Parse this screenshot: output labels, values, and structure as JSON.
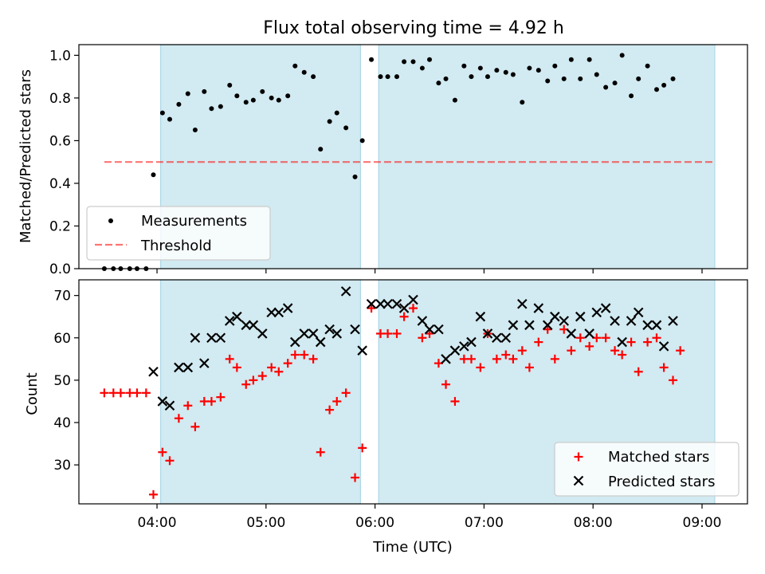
{
  "figure": {
    "title": "Flux total observing time = 4.92 h"
  },
  "colors": {
    "observing_band": "#add8e6",
    "measurements": "#000000",
    "threshold": "#ff0000",
    "matched": "#ff0000",
    "predicted": "#000000"
  },
  "chart_data": [
    {
      "type": "scatter",
      "panel": "top",
      "ylabel": "Matched/Predicted stars",
      "xlim": [
        "03:17",
        "09:25"
      ],
      "ylim": [
        0,
        1.05
      ],
      "yticks": [
        0.0,
        0.2,
        0.4,
        0.6,
        0.8,
        1.0
      ],
      "ytick_labels": [
        "0.0",
        "0.2",
        "0.4",
        "0.6",
        "0.8",
        "1.0"
      ],
      "grid": false,
      "legend": {
        "placement": "lower-left",
        "entries": [
          "Measurements",
          "Threshold"
        ]
      },
      "observing_intervals": [
        [
          "04:02",
          "05:52"
        ],
        [
          "06:02",
          "09:07"
        ]
      ],
      "threshold": {
        "name": "Threshold",
        "value": 0.5,
        "x_range": [
          "03:31",
          "09:07"
        ],
        "style": "dashed"
      },
      "series": [
        {
          "name": "Measurements",
          "marker": "dot",
          "points": [
            [
              "03:31",
              0.0
            ],
            [
              "03:36",
              0.0
            ],
            [
              "03:40",
              0.0
            ],
            [
              "03:45",
              0.0
            ],
            [
              "03:49",
              0.0
            ],
            [
              "03:54",
              0.0
            ],
            [
              "03:58",
              0.44
            ],
            [
              "04:03",
              0.73
            ],
            [
              "04:07",
              0.7
            ],
            [
              "04:12",
              0.77
            ],
            [
              "04:17",
              0.82
            ],
            [
              "04:21",
              0.65
            ],
            [
              "04:26",
              0.83
            ],
            [
              "04:30",
              0.75
            ],
            [
              "04:35",
              0.76
            ],
            [
              "04:40",
              0.86
            ],
            [
              "04:44",
              0.81
            ],
            [
              "04:49",
              0.78
            ],
            [
              "04:53",
              0.79
            ],
            [
              "04:58",
              0.83
            ],
            [
              "05:03",
              0.8
            ],
            [
              "05:07",
              0.79
            ],
            [
              "05:12",
              0.81
            ],
            [
              "05:16",
              0.95
            ],
            [
              "05:21",
              0.92
            ],
            [
              "05:26",
              0.9
            ],
            [
              "05:30",
              0.56
            ],
            [
              "05:35",
              0.69
            ],
            [
              "05:39",
              0.73
            ],
            [
              "05:44",
              0.66
            ],
            [
              "05:49",
              0.43
            ],
            [
              "05:53",
              0.6
            ],
            [
              "05:58",
              0.98
            ],
            [
              "06:03",
              0.9
            ],
            [
              "06:07",
              0.9
            ],
            [
              "06:12",
              0.9
            ],
            [
              "06:16",
              0.97
            ],
            [
              "06:21",
              0.97
            ],
            [
              "06:26",
              0.94
            ],
            [
              "06:30",
              0.98
            ],
            [
              "06:35",
              0.87
            ],
            [
              "06:39",
              0.89
            ],
            [
              "06:44",
              0.79
            ],
            [
              "06:49",
              0.95
            ],
            [
              "06:53",
              0.9
            ],
            [
              "06:58",
              0.94
            ],
            [
              "07:02",
              0.9
            ],
            [
              "07:07",
              0.93
            ],
            [
              "07:12",
              0.92
            ],
            [
              "07:16",
              0.91
            ],
            [
              "07:21",
              0.78
            ],
            [
              "07:25",
              0.94
            ],
            [
              "07:30",
              0.93
            ],
            [
              "07:35",
              0.88
            ],
            [
              "07:39",
              0.95
            ],
            [
              "07:44",
              0.89
            ],
            [
              "07:48",
              0.98
            ],
            [
              "07:53",
              0.89
            ],
            [
              "07:58",
              0.98
            ],
            [
              "08:02",
              0.91
            ],
            [
              "08:07",
              0.85
            ],
            [
              "08:12",
              0.87
            ],
            [
              "08:16",
              1.0
            ],
            [
              "08:21",
              0.81
            ],
            [
              "08:25",
              0.89
            ],
            [
              "08:30",
              0.95
            ],
            [
              "08:35",
              0.84
            ],
            [
              "08:39",
              0.86
            ],
            [
              "08:44",
              0.89
            ]
          ]
        }
      ]
    },
    {
      "type": "scatter",
      "panel": "bottom",
      "xlabel": "Time (UTC)",
      "ylabel": "Count",
      "xlim": [
        "03:17",
        "09:25"
      ],
      "ylim": [
        20.8,
        73.7
      ],
      "xticks": [
        "04:00",
        "05:00",
        "06:00",
        "07:00",
        "08:00",
        "09:00"
      ],
      "yticks": [
        30,
        40,
        50,
        60,
        70
      ],
      "grid": false,
      "legend": {
        "placement": "lower-right",
        "entries": [
          "Matched stars",
          "Predicted stars"
        ]
      },
      "observing_intervals": [
        [
          "04:02",
          "05:52"
        ],
        [
          "06:02",
          "09:07"
        ]
      ],
      "series": [
        {
          "name": "Matched stars",
          "marker": "plus",
          "points": [
            [
              "03:31",
              47
            ],
            [
              "03:36",
              47
            ],
            [
              "03:40",
              47
            ],
            [
              "03:45",
              47
            ],
            [
              "03:49",
              47
            ],
            [
              "03:54",
              47
            ],
            [
              "03:58",
              23
            ],
            [
              "04:03",
              33
            ],
            [
              "04:07",
              31
            ],
            [
              "04:12",
              41
            ],
            [
              "04:17",
              44
            ],
            [
              "04:21",
              39
            ],
            [
              "04:26",
              45
            ],
            [
              "04:30",
              45
            ],
            [
              "04:35",
              46
            ],
            [
              "04:40",
              55
            ],
            [
              "04:44",
              53
            ],
            [
              "04:49",
              49
            ],
            [
              "04:53",
              50
            ],
            [
              "04:58",
              51
            ],
            [
              "05:03",
              53
            ],
            [
              "05:07",
              52
            ],
            [
              "05:12",
              54
            ],
            [
              "05:16",
              56
            ],
            [
              "05:21",
              56
            ],
            [
              "05:26",
              55
            ],
            [
              "05:30",
              33
            ],
            [
              "05:35",
              43
            ],
            [
              "05:39",
              45
            ],
            [
              "05:44",
              47
            ],
            [
              "05:49",
              27
            ],
            [
              "05:53",
              34
            ],
            [
              "05:58",
              67
            ],
            [
              "06:03",
              61
            ],
            [
              "06:07",
              61
            ],
            [
              "06:12",
              61
            ],
            [
              "06:16",
              65
            ],
            [
              "06:21",
              67
            ],
            [
              "06:26",
              60
            ],
            [
              "06:30",
              61
            ],
            [
              "06:35",
              54
            ],
            [
              "06:39",
              49
            ],
            [
              "06:44",
              45
            ],
            [
              "06:49",
              55
            ],
            [
              "06:53",
              55
            ],
            [
              "06:58",
              53
            ],
            [
              "07:02",
              61
            ],
            [
              "07:07",
              55
            ],
            [
              "07:12",
              56
            ],
            [
              "07:16",
              55
            ],
            [
              "07:21",
              57
            ],
            [
              "07:25",
              53
            ],
            [
              "07:30",
              59
            ],
            [
              "07:35",
              62
            ],
            [
              "07:39",
              55
            ],
            [
              "07:44",
              62
            ],
            [
              "07:48",
              57
            ],
            [
              "07:53",
              60
            ],
            [
              "07:58",
              58
            ],
            [
              "08:02",
              60
            ],
            [
              "08:07",
              60
            ],
            [
              "08:12",
              57
            ],
            [
              "08:16",
              56
            ],
            [
              "08:21",
              59
            ],
            [
              "08:25",
              52
            ],
            [
              "08:30",
              59
            ],
            [
              "08:35",
              60
            ],
            [
              "08:39",
              53
            ],
            [
              "08:44",
              50
            ],
            [
              "08:48",
              57
            ]
          ]
        },
        {
          "name": "Predicted stars",
          "marker": "x",
          "points": [
            [
              "03:58",
              52
            ],
            [
              "04:03",
              45
            ],
            [
              "04:07",
              44
            ],
            [
              "04:12",
              53
            ],
            [
              "04:17",
              53
            ],
            [
              "04:21",
              60
            ],
            [
              "04:26",
              54
            ],
            [
              "04:30",
              60
            ],
            [
              "04:35",
              60
            ],
            [
              "04:40",
              64
            ],
            [
              "04:44",
              65
            ],
            [
              "04:49",
              63
            ],
            [
              "04:53",
              63
            ],
            [
              "04:58",
              61
            ],
            [
              "05:03",
              66
            ],
            [
              "05:07",
              66
            ],
            [
              "05:12",
              67
            ],
            [
              "05:16",
              59
            ],
            [
              "05:21",
              61
            ],
            [
              "05:26",
              61
            ],
            [
              "05:30",
              59
            ],
            [
              "05:35",
              62
            ],
            [
              "05:39",
              61
            ],
            [
              "05:44",
              71
            ],
            [
              "05:49",
              62
            ],
            [
              "05:53",
              57
            ],
            [
              "05:58",
              68
            ],
            [
              "06:03",
              68
            ],
            [
              "06:07",
              68
            ],
            [
              "06:12",
              68
            ],
            [
              "06:16",
              67
            ],
            [
              "06:21",
              69
            ],
            [
              "06:26",
              64
            ],
            [
              "06:30",
              62
            ],
            [
              "06:35",
              62
            ],
            [
              "06:39",
              55
            ],
            [
              "06:44",
              57
            ],
            [
              "06:49",
              58
            ],
            [
              "06:53",
              59
            ],
            [
              "06:58",
              65
            ],
            [
              "07:02",
              61
            ],
            [
              "07:07",
              60
            ],
            [
              "07:12",
              60
            ],
            [
              "07:16",
              63
            ],
            [
              "07:21",
              68
            ],
            [
              "07:25",
              63
            ],
            [
              "07:30",
              67
            ],
            [
              "07:35",
              63
            ],
            [
              "07:39",
              65
            ],
            [
              "07:44",
              64
            ],
            [
              "07:48",
              61
            ],
            [
              "07:53",
              65
            ],
            [
              "07:58",
              61
            ],
            [
              "08:02",
              66
            ],
            [
              "08:07",
              67
            ],
            [
              "08:12",
              64
            ],
            [
              "08:16",
              59
            ],
            [
              "08:21",
              64
            ],
            [
              "08:25",
              66
            ],
            [
              "08:30",
              63
            ],
            [
              "08:35",
              63
            ],
            [
              "08:39",
              58
            ],
            [
              "08:44",
              64
            ]
          ]
        }
      ]
    }
  ]
}
